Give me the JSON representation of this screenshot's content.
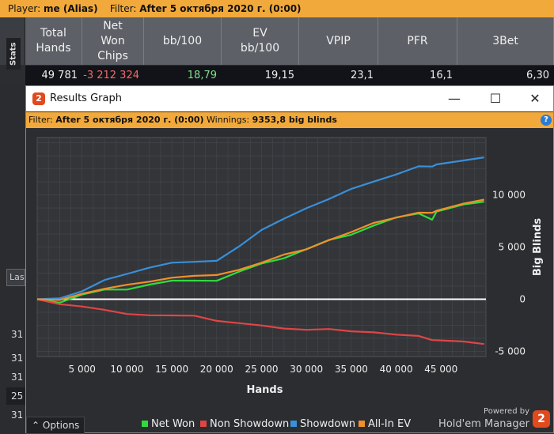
{
  "topbar": {
    "player_label": "Player:",
    "player_value": "me (Alias)",
    "filter_label": "Filter:",
    "filter_value": "After 5 октября 2020 г. (0:00)"
  },
  "stats_tab": "Stats",
  "stats": {
    "columns": [
      {
        "label": "Total\nHands",
        "value": "49 781",
        "color": "#eeeeee"
      },
      {
        "label": "Net\nWon\nChips",
        "value": "-3 212 324",
        "color": "#f26a6a"
      },
      {
        "label": "bb/100",
        "value": "18,79",
        "color": "#7ce38b"
      },
      {
        "label": "EV\nbb/100",
        "value": "19,15",
        "color": "#eeeeee"
      },
      {
        "label": "VPIP",
        "value": "23,1",
        "color": "#eeeeee"
      },
      {
        "label": "PFR",
        "value": "16,1",
        "color": "#eeeeee"
      },
      {
        "label": "3Bet",
        "value": "6,30",
        "color": "#eeeeee"
      }
    ]
  },
  "left": {
    "field": "Las",
    "rows": [
      "31",
      "31",
      "31",
      "25",
      "31"
    ]
  },
  "window": {
    "title": "Results Graph",
    "minimize": "—",
    "maximize": "☐",
    "close": "✕"
  },
  "filterbar": {
    "filter_label": "Filter:",
    "filter_value": "After 5 октября 2020 г. (0:00)",
    "winnings_label": "Winnings:",
    "winnings_value": "9353,8 big blinds",
    "help": "?"
  },
  "footer": {
    "options": "Options",
    "powered_by": "Powered by",
    "brand": "Hold'em Manager",
    "brand_logo": "2"
  },
  "colors": {
    "net_won": "#2fdc3f",
    "non_showdown": "#e04545",
    "showdown": "#3a8fd8",
    "allin_ev": "#f0902a"
  },
  "chart_data": {
    "type": "line",
    "xlabel": "Hands",
    "ylabel": "Big Blinds",
    "xlim": [
      0,
      50000
    ],
    "ylim": [
      -5500,
      15500
    ],
    "x_ticks": [
      "5 000",
      "10 000",
      "15 000",
      "20 000",
      "25 000",
      "30 000",
      "35 000",
      "40 000",
      "45 000"
    ],
    "x_tick_values": [
      5000,
      10000,
      15000,
      20000,
      25000,
      30000,
      35000,
      40000,
      45000
    ],
    "y_ticks": [
      "10 000",
      "5 000",
      "0",
      "-5 000"
    ],
    "y_tick_values": [
      10000,
      5000,
      0,
      -5000
    ],
    "x": [
      0,
      2500,
      5000,
      7500,
      10000,
      12500,
      15000,
      17500,
      20000,
      22500,
      25000,
      27500,
      30000,
      32500,
      35000,
      37500,
      40000,
      42500,
      44000,
      44500,
      47500,
      49800
    ],
    "series": [
      {
        "name": "Net Won",
        "color": "#2fdc3f",
        "values": [
          0,
          -300,
          400,
          800,
          1000,
          1400,
          1700,
          1900,
          1800,
          2600,
          3300,
          4000,
          4800,
          5600,
          6300,
          7100,
          7800,
          8100,
          7700,
          8400,
          9000,
          9350
        ]
      },
      {
        "name": "Non Showdown",
        "color": "#e04545",
        "values": [
          0,
          -400,
          -700,
          -1100,
          -1300,
          -1500,
          -1600,
          -1700,
          -2000,
          -2300,
          -2600,
          -2700,
          -2900,
          -2900,
          -3200,
          -3100,
          -3400,
          -3600,
          -3800,
          -3900,
          -4100,
          -4300
        ]
      },
      {
        "name": "Showdown",
        "color": "#3a8fd8",
        "values": [
          0,
          200,
          800,
          1800,
          2300,
          3100,
          3500,
          3500,
          3800,
          5100,
          6600,
          7600,
          8800,
          9600,
          10500,
          11400,
          12000,
          12700,
          12600,
          13000,
          13300,
          13600
        ]
      },
      {
        "name": "All-In EV",
        "color": "#f0902a",
        "values": [
          0,
          -200,
          600,
          1000,
          1300,
          1800,
          2100,
          2200,
          2200,
          2900,
          3500,
          4200,
          4900,
          5700,
          6400,
          7200,
          7900,
          8300,
          8200,
          8600,
          9200,
          9550
        ]
      }
    ],
    "legend": "bottom"
  }
}
